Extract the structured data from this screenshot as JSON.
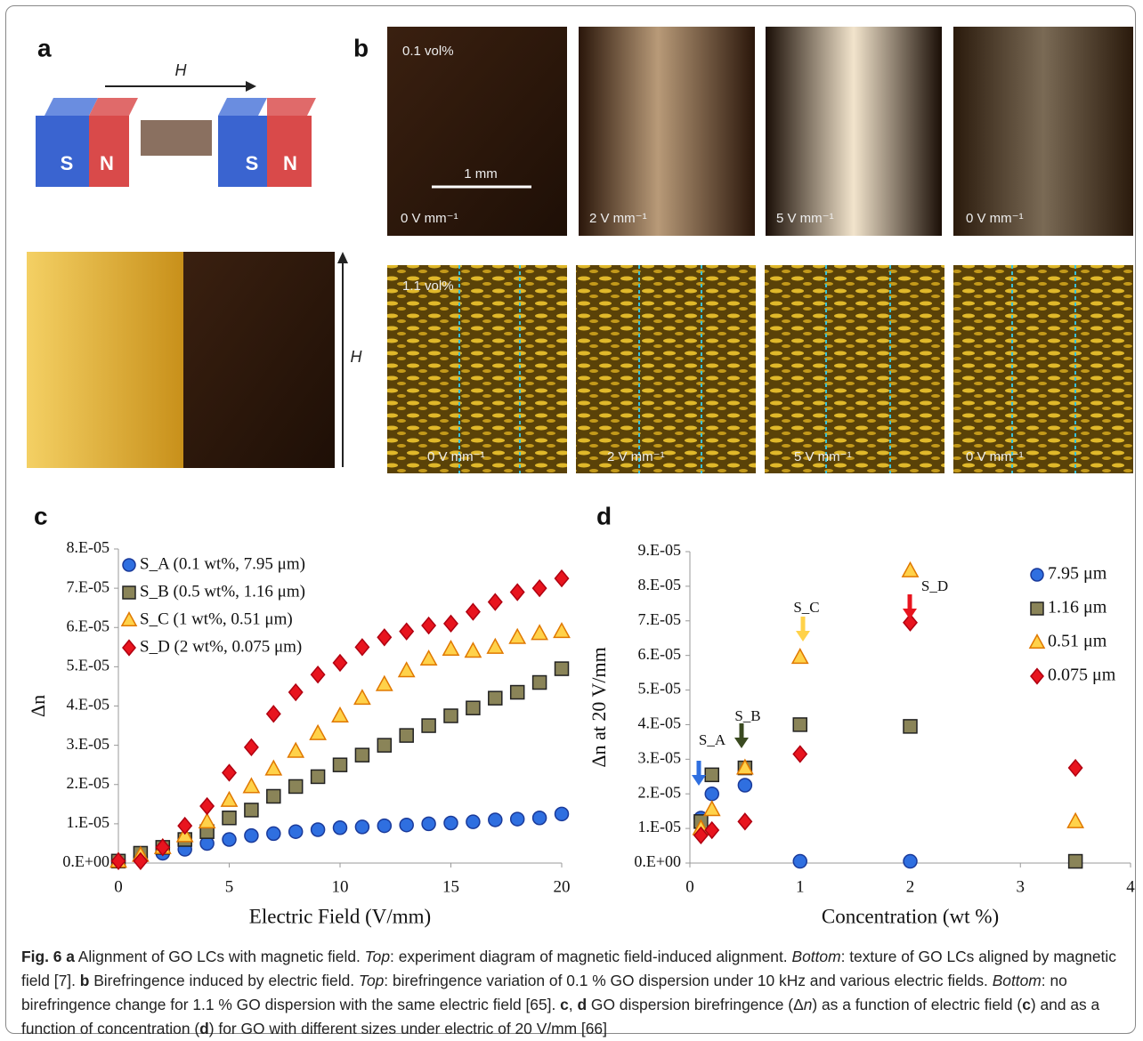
{
  "panel_labels": [
    "a",
    "b",
    "c",
    "d"
  ],
  "magnet": {
    "field": "H",
    "poles": [
      "S",
      "N",
      "S",
      "N"
    ]
  },
  "texture_field": "H",
  "photos_top": {
    "concentration": "0.1 vol%",
    "scale": "1 mm",
    "fields": [
      "0 V mm⁻¹",
      "2 V mm⁻¹",
      "5 V mm⁻¹",
      "0 V mm⁻¹"
    ]
  },
  "photos_bottom": {
    "concentration": "1.1 vol%",
    "fields": [
      "0 V mm⁻¹",
      "2 V mm⁻¹",
      "5 V mm⁻¹",
      "0 V mm⁻¹"
    ]
  },
  "chart_data": [
    {
      "type": "scatter",
      "xlabel": "Electric Field (V/mm)",
      "ylabel": "Δn",
      "legend": "upper left",
      "xlim": [
        0,
        20
      ],
      "xticks": [
        0,
        5,
        10,
        15,
        20
      ],
      "ylim": [
        0,
        8e-05
      ],
      "yticks": [
        {
          "value": 0,
          "label": "0.E+00"
        },
        {
          "value": 1e-05,
          "label": "1.E-05"
        },
        {
          "value": 2e-05,
          "label": "2.E-05"
        },
        {
          "value": 3e-05,
          "label": "3.E-05"
        },
        {
          "value": 4e-05,
          "label": "4.E-05"
        },
        {
          "value": 5e-05,
          "label": "5.E-05"
        },
        {
          "value": 6e-05,
          "label": "6.E-05"
        },
        {
          "value": 7e-05,
          "label": "7.E-05"
        },
        {
          "value": 8e-05,
          "label": "8.E-05"
        }
      ],
      "x": [
        0,
        1,
        2,
        3,
        4,
        5,
        6,
        7,
        8,
        9,
        10,
        11,
        12,
        13,
        14,
        15,
        16,
        17,
        18,
        19,
        20
      ],
      "series": [
        {
          "name": "S_A (0.1 wt%, 7.95 μm)",
          "color": "#2f6fe0",
          "marker": "circle",
          "values": [
            5e-07,
            1.5e-06,
            2.5e-06,
            3.5e-06,
            5e-06,
            6e-06,
            7e-06,
            7.5e-06,
            8e-06,
            8.5e-06,
            9e-06,
            9.2e-06,
            9.5e-06,
            9.7e-06,
            1e-05,
            1.02e-05,
            1.05e-05,
            1.1e-05,
            1.12e-05,
            1.15e-05,
            1.25e-05
          ]
        },
        {
          "name": "S_B (0.5 wt%, 1.16 μm)",
          "color": "#8a8458",
          "marker": "square",
          "values": [
            5e-07,
            2.5e-06,
            4e-06,
            6e-06,
            8e-06,
            1.15e-05,
            1.35e-05,
            1.7e-05,
            1.95e-05,
            2.2e-05,
            2.5e-05,
            2.75e-05,
            3e-05,
            3.25e-05,
            3.5e-05,
            3.75e-05,
            3.95e-05,
            4.2e-05,
            4.35e-05,
            4.6e-05,
            4.95e-05
          ]
        },
        {
          "name": "S_C (1 wt%, 0.51 μm)",
          "color": "#ffd24a",
          "marker": "triangle",
          "values": [
            5e-07,
            2e-06,
            4e-06,
            7e-06,
            1.05e-05,
            1.6e-05,
            1.95e-05,
            2.4e-05,
            2.85e-05,
            3.3e-05,
            3.75e-05,
            4.2e-05,
            4.55e-05,
            4.9e-05,
            5.2e-05,
            5.45e-05,
            5.4e-05,
            5.5e-05,
            5.75e-05,
            5.85e-05,
            5.9e-05
          ]
        },
        {
          "name": "S_D (2 wt%, 0.075 μm)",
          "color": "#e8141e",
          "marker": "diamond",
          "values": [
            5e-07,
            5e-07,
            4e-06,
            9.5e-06,
            1.45e-05,
            2.3e-05,
            2.95e-05,
            3.8e-05,
            4.35e-05,
            4.8e-05,
            5.1e-05,
            5.5e-05,
            5.75e-05,
            5.9e-05,
            6.05e-05,
            6.1e-05,
            6.4e-05,
            6.65e-05,
            6.9e-05,
            7e-05,
            7.25e-05
          ]
        }
      ]
    },
    {
      "type": "scatter",
      "xlabel": "Concentration (wt %)",
      "ylabel": "Δn at 20 V/mm",
      "legend": "upper right",
      "xlim": [
        0,
        4
      ],
      "xticks": [
        0,
        1,
        2,
        3,
        4
      ],
      "ylim": [
        0,
        9e-05
      ],
      "yticks": [
        {
          "value": 0,
          "label": "0.E+00"
        },
        {
          "value": 1e-05,
          "label": "1.E-05"
        },
        {
          "value": 2e-05,
          "label": "2.E-05"
        },
        {
          "value": 3e-05,
          "label": "3.E-05"
        },
        {
          "value": 4e-05,
          "label": "4.E-05"
        },
        {
          "value": 5e-05,
          "label": "5.E-05"
        },
        {
          "value": 6e-05,
          "label": "6.E-05"
        },
        {
          "value": 7e-05,
          "label": "7.E-05"
        },
        {
          "value": 8e-05,
          "label": "8.E-05"
        },
        {
          "value": 9e-05,
          "label": "9.E-05"
        }
      ],
      "annotations": [
        "S_A",
        "S_B",
        "S_C",
        "S_D"
      ],
      "series": [
        {
          "name": "7.95 μm",
          "color": "#2f6fe0",
          "marker": "circle",
          "x": [
            0.1,
            0.2,
            0.5,
            1,
            2
          ],
          "values": [
            1.3e-05,
            2e-05,
            2.25e-05,
            5e-07,
            5e-07
          ]
        },
        {
          "name": "1.16 μm",
          "color": "#8a8458",
          "marker": "square",
          "x": [
            0.1,
            0.2,
            0.5,
            1,
            2,
            3.5
          ],
          "values": [
            1.2e-05,
            2.55e-05,
            2.75e-05,
            4e-05,
            3.95e-05,
            5e-07
          ]
        },
        {
          "name": "0.51 μm",
          "color": "#ffd24a",
          "marker": "triangle",
          "x": [
            0.1,
            0.2,
            0.5,
            1,
            2,
            3.5
          ],
          "values": [
            1e-05,
            1.55e-05,
            2.75e-05,
            5.95e-05,
            8.45e-05,
            1.2e-05
          ]
        },
        {
          "name": "0.075 μm",
          "color": "#e8141e",
          "marker": "diamond",
          "x": [
            0.1,
            0.2,
            0.5,
            1,
            2,
            3.5
          ],
          "values": [
            8e-06,
            9.5e-06,
            1.2e-05,
            3.15e-05,
            6.95e-05,
            2.75e-05
          ]
        }
      ]
    }
  ],
  "caption": [
    "Fig. 6 a",
    " Alignment of GO LCs with magnetic field. ",
    "Top",
    ": experiment diagram of magnetic field-induced alignment. ",
    "Bottom",
    ": texture of GO LCs aligned by magnetic field [7]. ",
    "b",
    " Birefringence induced by electric field. ",
    "Top",
    ": birefringence variation of 0.1 % GO dispersion under 10 kHz and various electric fields. ",
    "Bottom",
    ": no birefringence change for 1.1 % GO dispersion with the same electric field [65]. ",
    "c",
    ", ",
    "d",
    " GO dispersion birefringence (Δ",
    "n",
    ") as a function of electric field (",
    "c",
    ") and as a function of concentration (",
    "d",
    ") for GO with different sizes under electric of 20 V/mm [66]"
  ]
}
